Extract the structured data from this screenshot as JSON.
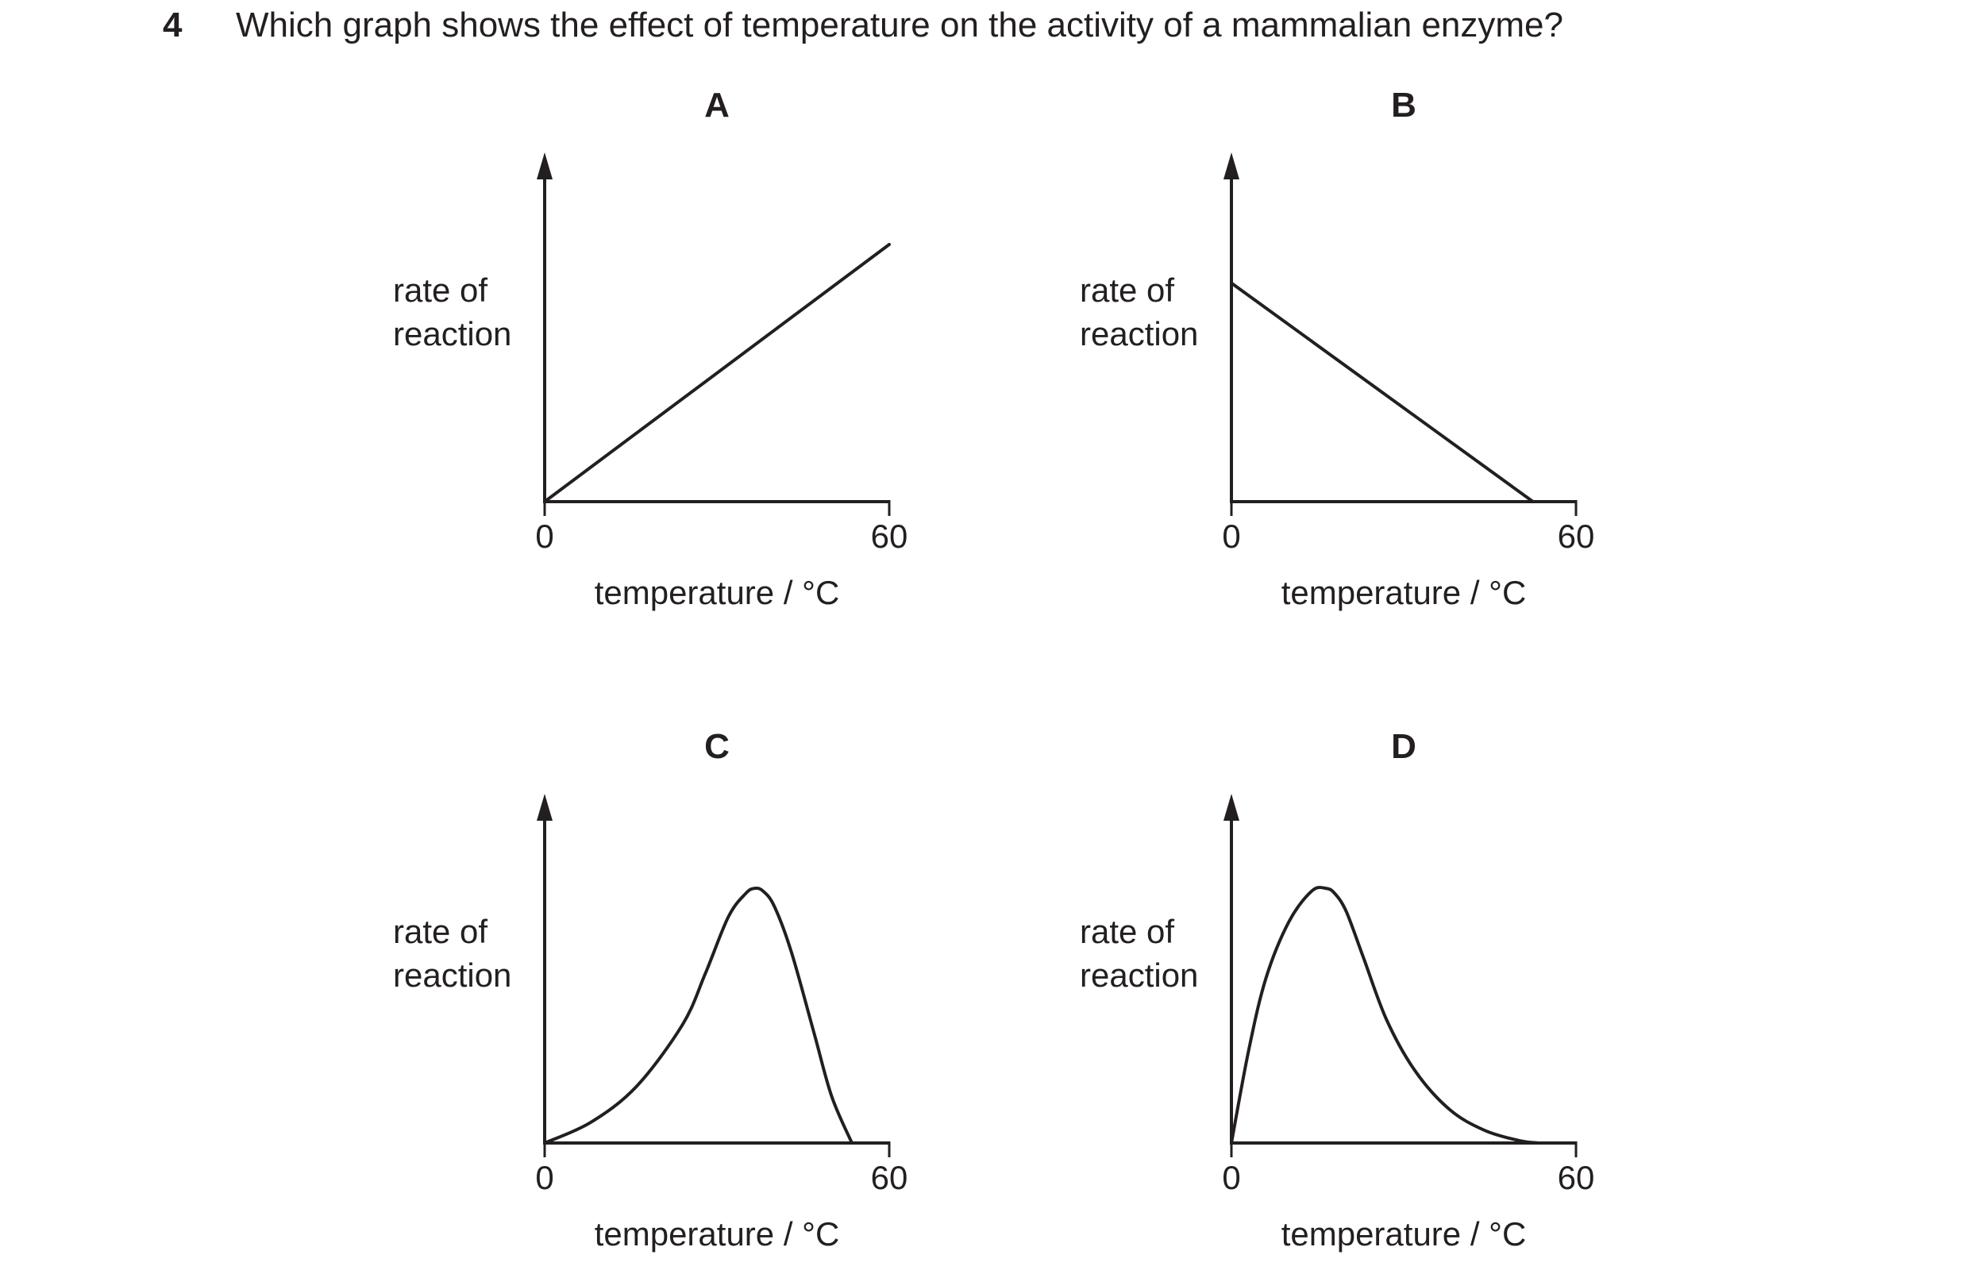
{
  "question": {
    "number": "4",
    "text": "Which graph shows the effect of temperature on the activity of a mammalian enzyme?"
  },
  "colors": {
    "ink": "#231f20",
    "background": "#ffffff"
  },
  "chart_data": [
    {
      "type": "line",
      "title": "A",
      "ylabel": "rate of reaction",
      "xlabel": "temperature / °C",
      "x_ticks": [
        "0",
        "60"
      ],
      "xlim": [
        0,
        60
      ],
      "ylim": [
        0,
        1.25
      ],
      "grid": false,
      "x": [
        0,
        60
      ],
      "y": [
        0,
        1.0
      ]
    },
    {
      "type": "line",
      "title": "B",
      "ylabel": "rate of reaction",
      "xlabel": "temperature / °C",
      "x_ticks": [
        "0",
        "60"
      ],
      "xlim": [
        0,
        60
      ],
      "ylim": [
        0,
        1.25
      ],
      "grid": false,
      "x": [
        0,
        52.5
      ],
      "y": [
        0.85,
        0
      ]
    },
    {
      "type": "line",
      "title": "C",
      "ylabel": "rate of reaction",
      "xlabel": "temperature / °C",
      "x_ticks": [
        "0",
        "60"
      ],
      "xlim": [
        0,
        60
      ],
      "ylim": [
        0,
        1.25
      ],
      "grid": false,
      "x": [
        0,
        8,
        16,
        24,
        28,
        32,
        35,
        36.5,
        38,
        40,
        43,
        47,
        50,
        53.5
      ],
      "y": [
        0,
        0.08,
        0.22,
        0.46,
        0.66,
        0.88,
        0.97,
        0.99,
        0.98,
        0.92,
        0.74,
        0.42,
        0.18,
        0
      ]
    },
    {
      "type": "line",
      "title": "D",
      "ylabel": "rate of reaction",
      "xlabel": "temperature / °C",
      "x_ticks": [
        "0",
        "60"
      ],
      "xlim": [
        0,
        60
      ],
      "ylim": [
        0,
        1.25
      ],
      "grid": false,
      "x": [
        0,
        3,
        6,
        10,
        14,
        16.5,
        18,
        20,
        23,
        27,
        32,
        38,
        44,
        50,
        53.5
      ],
      "y": [
        0,
        0.36,
        0.64,
        0.86,
        0.98,
        0.99,
        0.97,
        0.9,
        0.72,
        0.48,
        0.28,
        0.13,
        0.05,
        0.01,
        0
      ]
    }
  ]
}
